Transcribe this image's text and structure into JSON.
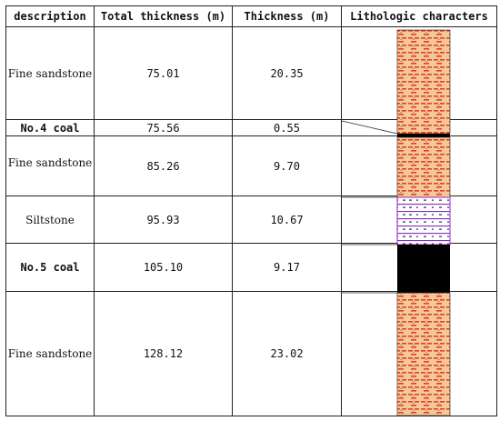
{
  "headers": {
    "description": "description",
    "total": "Total thickness (m)",
    "thickness": "Thickness (m)",
    "litho": "Lithologic characters"
  },
  "rows": [
    {
      "description": "Fine sandstone",
      "total": "75.01",
      "thickness": "20.35",
      "lithology": "sandstone"
    },
    {
      "description": "No.4 coal",
      "total": "75.56",
      "thickness": "0.55",
      "lithology": "coal"
    },
    {
      "description": "Fine sandstone",
      "total": "85.26",
      "thickness": "9.70",
      "lithology": "sandstone"
    },
    {
      "description": "Siltstone",
      "total": "95.93",
      "thickness": "10.67",
      "lithology": "siltstone"
    },
    {
      "description": "No.5 coal",
      "total": "105.10",
      "thickness": "9.17",
      "lithology": "coal"
    },
    {
      "description": "Fine sandstone",
      "total": "128.12",
      "thickness": "23.02",
      "lithology": "sandstone"
    }
  ],
  "colors": {
    "sandstone_fill": "#f3c89a",
    "sandstone_dash": "#e8401c",
    "sandstone_dot": "#1f2a6e",
    "siltstone_line": "#8e2bbf",
    "siltstone_dash": "#1f2a6e",
    "coal": "#000000",
    "border": "#222222"
  }
}
